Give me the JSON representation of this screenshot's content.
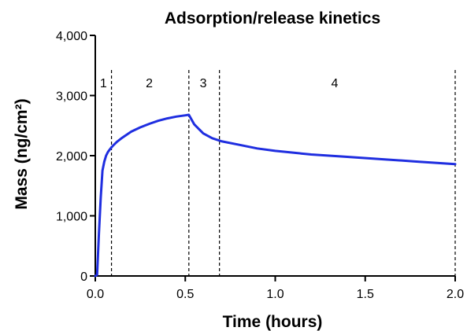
{
  "chart_data": {
    "type": "line",
    "title": "Adsorption/release kinetics",
    "xlabel": "Time (hours)",
    "ylabel": "Mass (ng/cm²)",
    "xlim": [
      0.0,
      2.0
    ],
    "ylim": [
      0,
      4000
    ],
    "x_ticks": [
      {
        "value": 0.0,
        "label": "0.0"
      },
      {
        "value": 0.5,
        "label": "0.5"
      },
      {
        "value": 1.0,
        "label": "1.0"
      },
      {
        "value": 1.5,
        "label": "1.5"
      },
      {
        "value": 2.0,
        "label": "2.0"
      }
    ],
    "y_ticks": [
      {
        "value": 0,
        "label": "0"
      },
      {
        "value": 1000,
        "label": "1,000"
      },
      {
        "value": 2000,
        "label": "2,000"
      },
      {
        "value": 3000,
        "label": "3,000"
      },
      {
        "value": 4000,
        "label": "4,000"
      }
    ],
    "grid": false,
    "series": [
      {
        "color": "#1f2ee0",
        "x": [
          0.0,
          0.01,
          0.02,
          0.03,
          0.04,
          0.05,
          0.06,
          0.07,
          0.08,
          0.09,
          0.1,
          0.12,
          0.15,
          0.2,
          0.25,
          0.3,
          0.35,
          0.4,
          0.45,
          0.5,
          0.52,
          0.55,
          0.6,
          0.65,
          0.7,
          0.8,
          0.9,
          1.0,
          1.2,
          1.4,
          1.6,
          1.8,
          2.0
        ],
        "y": [
          0,
          20,
          700,
          1300,
          1750,
          1900,
          2000,
          2060,
          2100,
          2140,
          2170,
          2230,
          2300,
          2400,
          2470,
          2530,
          2580,
          2620,
          2650,
          2670,
          2680,
          2520,
          2370,
          2290,
          2240,
          2180,
          2120,
          2080,
          2020,
          1980,
          1940,
          1900,
          1860
        ]
      }
    ],
    "vertical_lines": [
      0.09,
      0.52,
      0.69,
      2.0
    ],
    "phase_labels": [
      {
        "label": "1",
        "x": 0.045
      },
      {
        "label": "2",
        "x": 0.3
      },
      {
        "label": "3",
        "x": 0.6
      },
      {
        "label": "4",
        "x": 1.33
      }
    ]
  }
}
